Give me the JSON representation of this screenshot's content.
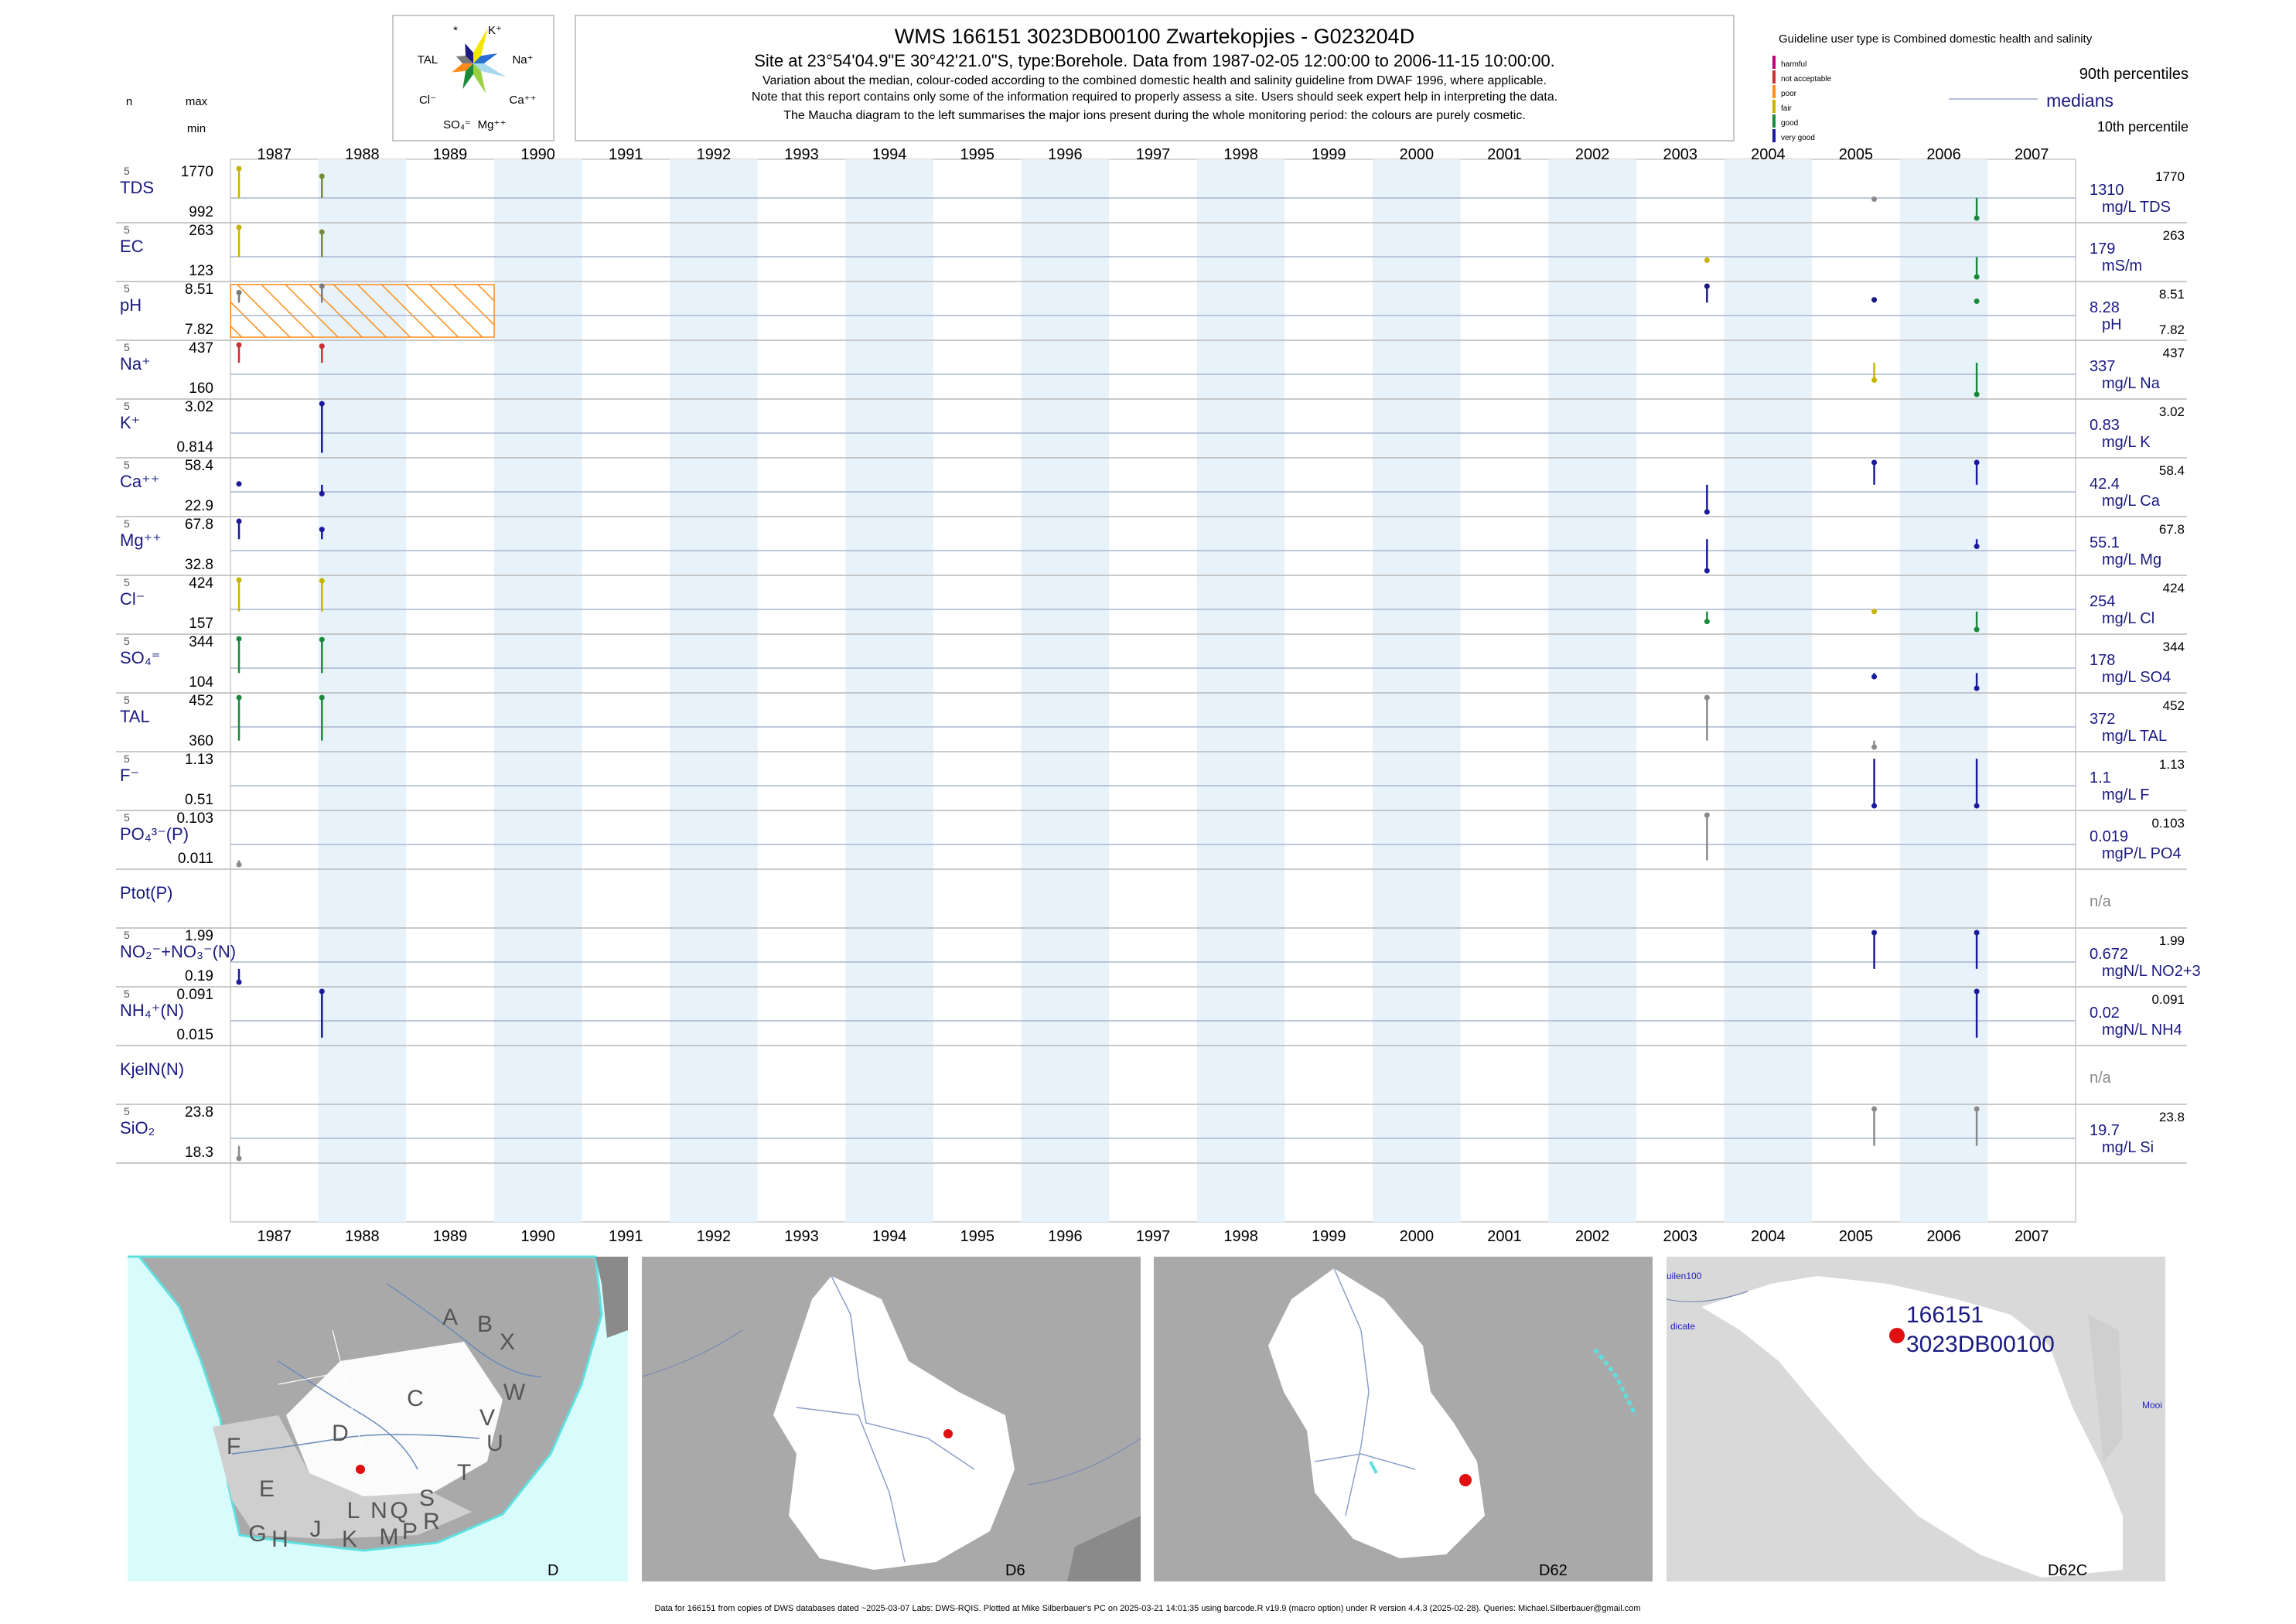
{
  "header": {
    "title": "WMS 166151 3023DB00100 Zwartekopjies - G023204D",
    "subtitle": "Site at 23°54'04.9\"E 30°42'21.0\"S, type:Borehole.  Data from 1987-02-05 12:00:00 to 2006-11-15 10:00:00.",
    "note1": "Variation about the median,  colour-coded according to the combined domestic health and salinity guideline from DWAF 1996, where applicable.",
    "note2": "Note that this report contains only some of the information required to properly assess a site. Users should seek expert help in interpreting the data.",
    "note3": "The Maucha diagram to the left summarises the major ions present during the whole monitoring period: the colours are purely cosmetic."
  },
  "maucha": {
    "labels": [
      "*",
      "K⁺",
      "TAL",
      "Na⁺",
      "Cl⁻",
      "Ca⁺⁺",
      "SO₄⁼",
      "Mg⁺⁺"
    ],
    "colors": [
      "#f2e600",
      "#2a6fd6",
      "#a8d8ee",
      "#9ad040",
      "#1a8a3a",
      "#ff8c1a",
      "#7a7a7a",
      "#1a1a80"
    ]
  },
  "legend": {
    "guideline_title": "Guideline user type is Combined domestic health and salinity",
    "classes": [
      {
        "label": "harmful",
        "color": "#c0007a"
      },
      {
        "label": "not acceptable",
        "color": "#c83232"
      },
      {
        "label": "poor",
        "color": "#ff8c1a"
      },
      {
        "label": "fair",
        "color": "#c8b400"
      },
      {
        "label": "good",
        "color": "#1a8a3a"
      },
      {
        "label": "very good",
        "color": "#1a1a9a"
      }
    ],
    "p90": "90th percentiles",
    "medians": "medians",
    "p10": "10th percentile",
    "n": "n",
    "max": "max",
    "min": "min"
  },
  "chart_data": {
    "type": "line",
    "title": "WMS 166151 3023DB00100 Zwartekopjies - G023204D",
    "x_range": [
      "1987-01-01",
      "2007-12-31"
    ],
    "x_ticks": [
      "1987",
      "1988",
      "1989",
      "1990",
      "1991",
      "1992",
      "1993",
      "1994",
      "1995",
      "1996",
      "1997",
      "1998",
      "1999",
      "2000",
      "2001",
      "2002",
      "2003",
      "2004",
      "2005",
      "2006",
      "2007"
    ],
    "sample_dates": [
      "1987-02-05",
      "1988-01-15",
      "2003-10-20",
      "2005-09-15",
      "2006-11-15"
    ],
    "ph_guideline_hatch": {
      "from": "1987-01-01",
      "to": "1989-12-31",
      "color": "#ff8c1a"
    },
    "series": [
      {
        "name": "TDS",
        "n": "5",
        "max": "1770",
        "min": "992",
        "median": "1310",
        "unit": "mg/L TDS",
        "p90": "1770",
        "p10": ""
      },
      {
        "name": "EC",
        "n": "5",
        "max": "263",
        "min": "123",
        "median": "179",
        "unit": "mS/m",
        "p90": "263",
        "p10": ""
      },
      {
        "name": "pH",
        "n": "5",
        "max": "8.51",
        "min": "7.82",
        "median": "8.28",
        "unit": "pH",
        "p90": "8.51",
        "p10": "7.82"
      },
      {
        "name": "Na⁺",
        "n": "5",
        "max": "437",
        "min": "160",
        "median": "337",
        "unit": "mg/L Na",
        "p90": "437",
        "p10": ""
      },
      {
        "name": "K⁺",
        "n": "5",
        "max": "3.02",
        "min": "0.814",
        "median": "0.83",
        "unit": "mg/L K",
        "p90": "3.02",
        "p10": ""
      },
      {
        "name": "Ca⁺⁺",
        "n": "5",
        "max": "58.4",
        "min": "22.9",
        "median": "42.4",
        "unit": "mg/L Ca",
        "p90": "58.4",
        "p10": ""
      },
      {
        "name": "Mg⁺⁺",
        "n": "5",
        "max": "67.8",
        "min": "32.8",
        "median": "55.1",
        "unit": "mg/L Mg",
        "p90": "67.8",
        "p10": ""
      },
      {
        "name": "Cl⁻",
        "n": "5",
        "max": "424",
        "min": "157",
        "median": "254",
        "unit": "mg/L Cl",
        "p90": "424",
        "p10": ""
      },
      {
        "name": "SO₄⁼",
        "n": "5",
        "max": "344",
        "min": "104",
        "median": "178",
        "unit": "mg/L SO4",
        "p90": "344",
        "p10": ""
      },
      {
        "name": "TAL",
        "n": "5",
        "max": "452",
        "min": "360",
        "median": "372",
        "unit": "mg/L TAL",
        "p90": "452",
        "p10": ""
      },
      {
        "name": "F⁻",
        "n": "5",
        "max": "1.13",
        "min": "0.51",
        "median": "1.1",
        "unit": "mg/L F",
        "p90": "1.13",
        "p10": ""
      },
      {
        "name": "PO₄³⁻(P)",
        "n": "5",
        "max": "0.103",
        "min": "0.011",
        "median": "0.019",
        "unit": "mgP/L PO4",
        "p90": "0.103",
        "p10": ""
      },
      {
        "name": "Ptot(P)",
        "n": "",
        "max": "",
        "min": "",
        "median": "n/a",
        "unit": "",
        "p90": "",
        "p10": ""
      },
      {
        "name": "NO₂⁻+NO₃⁻(N)",
        "n": "5",
        "max": "1.99",
        "min": "0.19",
        "median": "0.672",
        "unit": "mgN/L NO2+3",
        "p90": "1.99",
        "p10": ""
      },
      {
        "name": "NH₄⁺(N)",
        "n": "5",
        "max": "0.091",
        "min": "0.015",
        "median": "0.02",
        "unit": "mgN/L NH4",
        "p90": "0.091",
        "p10": ""
      },
      {
        "name": "KjelN(N)",
        "n": "",
        "max": "",
        "min": "",
        "median": "n/a",
        "unit": "",
        "p90": "",
        "p10": ""
      },
      {
        "name": "SiO₂",
        "n": "5",
        "max": "23.8",
        "min": "18.3",
        "median": "19.7",
        "unit": "mg/L Si",
        "p90": "23.8",
        "p10": ""
      }
    ],
    "marks": [
      {
        "row": 0,
        "date": "1987-02-05",
        "value": 1770,
        "color": "#c8b400"
      },
      {
        "row": 0,
        "date": "1988-01-15",
        "value": 1650,
        "color": "#7a8a3a"
      },
      {
        "row": 0,
        "date": "2005-09-15",
        "value": 1290,
        "color": "#8a8a8a"
      },
      {
        "row": 0,
        "date": "2006-11-15",
        "value": 992,
        "color": "#1a8a3a"
      },
      {
        "row": 1,
        "date": "1987-02-05",
        "value": 263,
        "color": "#c8b400"
      },
      {
        "row": 1,
        "date": "1988-01-15",
        "value": 250,
        "color": "#7a8a3a"
      },
      {
        "row": 1,
        "date": "2003-10-20",
        "value": 170,
        "color": "#c8b400"
      },
      {
        "row": 1,
        "date": "2006-11-15",
        "value": 123,
        "color": "#1a8a3a"
      },
      {
        "row": 2,
        "date": "1987-02-05",
        "value": 8.42,
        "color": "#7a7a7a"
      },
      {
        "row": 2,
        "date": "1988-01-15",
        "value": 8.51,
        "color": "#7a7a7a"
      },
      {
        "row": 2,
        "date": "2003-10-20",
        "value": 8.51,
        "color": "#1a1a80"
      },
      {
        "row": 2,
        "date": "2005-09-15",
        "value": 8.32,
        "color": "#1a1a80"
      },
      {
        "row": 2,
        "date": "2006-11-15",
        "value": 8.3,
        "color": "#1a8a3a"
      },
      {
        "row": 3,
        "date": "1987-02-05",
        "value": 437,
        "color": "#c83232"
      },
      {
        "row": 3,
        "date": "1988-01-15",
        "value": 430,
        "color": "#c83232"
      },
      {
        "row": 3,
        "date": "2005-09-15",
        "value": 240,
        "color": "#c8b400"
      },
      {
        "row": 3,
        "date": "2006-11-15",
        "value": 160,
        "color": "#1a8a3a"
      },
      {
        "row": 4,
        "date": "1988-01-15",
        "value": 3.02,
        "color": "#1a1a9a"
      },
      {
        "row": 5,
        "date": "1987-02-05",
        "value": 43,
        "color": "#1a1a9a"
      },
      {
        "row": 5,
        "date": "1988-01-15",
        "value": 36,
        "color": "#1a1a9a"
      },
      {
        "row": 5,
        "date": "2003-10-20",
        "value": 22.9,
        "color": "#1a1a9a"
      },
      {
        "row": 5,
        "date": "2005-09-15",
        "value": 58.4,
        "color": "#1a1a9a"
      },
      {
        "row": 5,
        "date": "2006-11-15",
        "value": 58.4,
        "color": "#1a1a9a"
      },
      {
        "row": 6,
        "date": "1987-02-05",
        "value": 67.8,
        "color": "#1a1a9a"
      },
      {
        "row": 6,
        "date": "1988-01-15",
        "value": 62,
        "color": "#1a1a9a"
      },
      {
        "row": 6,
        "date": "2003-10-20",
        "value": 32.8,
        "color": "#1a1a9a"
      },
      {
        "row": 6,
        "date": "2006-11-15",
        "value": 50,
        "color": "#1a1a9a"
      },
      {
        "row": 7,
        "date": "1987-02-05",
        "value": 424,
        "color": "#c8b400"
      },
      {
        "row": 7,
        "date": "1988-01-15",
        "value": 420,
        "color": "#c8b400"
      },
      {
        "row": 7,
        "date": "2003-10-20",
        "value": 200,
        "color": "#1a8a3a"
      },
      {
        "row": 7,
        "date": "2005-09-15",
        "value": 254,
        "color": "#c8b400"
      },
      {
        "row": 7,
        "date": "2006-11-15",
        "value": 157,
        "color": "#1a8a3a"
      },
      {
        "row": 8,
        "date": "1987-02-05",
        "value": 344,
        "color": "#1a8a3a"
      },
      {
        "row": 8,
        "date": "1988-01-15",
        "value": 340,
        "color": "#1a8a3a"
      },
      {
        "row": 8,
        "date": "2005-09-15",
        "value": 160,
        "color": "#1a1a9a"
      },
      {
        "row": 8,
        "date": "2006-11-15",
        "value": 104,
        "color": "#1a1a9a"
      },
      {
        "row": 9,
        "date": "1987-02-05",
        "value": 452,
        "color": "#1a8a3a"
      },
      {
        "row": 9,
        "date": "1988-01-15",
        "value": 452,
        "color": "#1a8a3a"
      },
      {
        "row": 9,
        "date": "2003-10-20",
        "value": 452,
        "color": "#8a8a8a"
      },
      {
        "row": 9,
        "date": "2005-09-15",
        "value": 360,
        "color": "#8a8a8a"
      },
      {
        "row": 10,
        "date": "2005-09-15",
        "value": 0.51,
        "color": "#1a1a9a"
      },
      {
        "row": 10,
        "date": "2006-11-15",
        "value": 0.51,
        "color": "#1a1a9a"
      },
      {
        "row": 11,
        "date": "1987-02-05",
        "value": 0.011,
        "color": "#8a8a8a"
      },
      {
        "row": 11,
        "date": "2003-10-20",
        "value": 0.103,
        "color": "#8a8a8a"
      },
      {
        "row": 13,
        "date": "1987-02-05",
        "value": 0.19,
        "color": "#1a1a9a"
      },
      {
        "row": 13,
        "date": "2005-09-15",
        "value": 1.99,
        "color": "#1a1a9a"
      },
      {
        "row": 13,
        "date": "2006-11-15",
        "value": 1.99,
        "color": "#1a1a9a"
      },
      {
        "row": 14,
        "date": "1988-01-15",
        "value": 0.091,
        "color": "#1a1a9a"
      },
      {
        "row": 14,
        "date": "2006-11-15",
        "value": 0.091,
        "color": "#1a1a9a"
      },
      {
        "row": 16,
        "date": "1987-02-05",
        "value": 18.3,
        "color": "#8a8a8a"
      },
      {
        "row": 16,
        "date": "2005-09-15",
        "value": 23.8,
        "color": "#8a8a8a"
      },
      {
        "row": 16,
        "date": "2006-11-15",
        "value": 23.8,
        "color": "#8a8a8a"
      }
    ]
  },
  "maps": {
    "panels": [
      "D",
      "D6",
      "D62",
      "D62C"
    ],
    "region_letters": [
      "A",
      "B",
      "X",
      "C",
      "W",
      "D",
      "V",
      "U",
      "T",
      "F",
      "E",
      "G",
      "H",
      "J",
      "K",
      "L",
      "M",
      "N",
      "P",
      "Q",
      "R",
      "S"
    ],
    "site_label_1": "166151",
    "site_label_2": "3023DB00100",
    "place_labels": [
      "uilen100",
      "dicate",
      "Mooi"
    ],
    "site_color": "#e01010"
  },
  "footer": "Data for 166151 from copies of DWS databases dated ~2025-03-07 Labs: DWS-RQIS. Plotted at Mike Silberbauer's PC on 2025-03-21 14:01:35 using barcode.R v19.9 (macro option) under R version 4.4.3 (2025-02-28). Queries: Michael.Silberbauer@gmail.com"
}
